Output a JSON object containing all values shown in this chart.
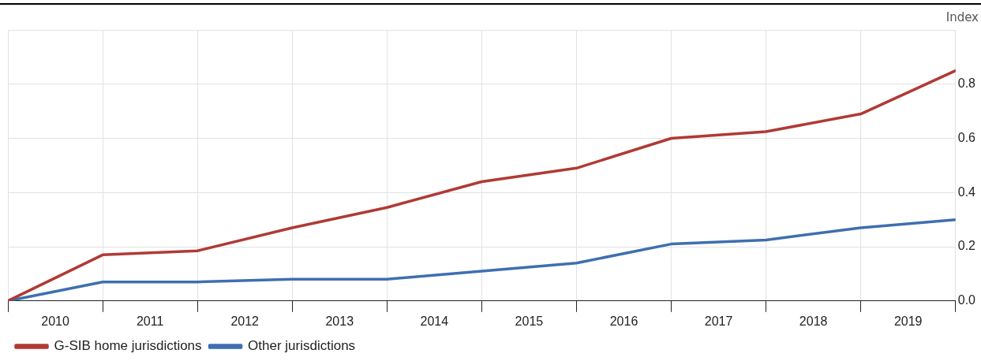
{
  "chart_data": {
    "type": "line",
    "ylabel": "Index",
    "x": [
      2010,
      2011,
      2012,
      2013,
      2014,
      2015,
      2016,
      2017,
      2018,
      2019,
      2020
    ],
    "xlim": [
      2010,
      2020
    ],
    "xticks": [
      {
        "value": 2010,
        "label": null
      },
      {
        "value": 2011,
        "label": null
      },
      {
        "value": 2012,
        "label": null
      },
      {
        "value": 2013,
        "label": null
      },
      {
        "value": 2014,
        "label": null
      },
      {
        "value": 2015,
        "label": null
      },
      {
        "value": 2016,
        "label": null
      },
      {
        "value": 2017,
        "label": null
      },
      {
        "value": 2018,
        "label": null
      },
      {
        "value": 2019,
        "label": null
      },
      {
        "value": 2020,
        "label": null
      },
      {
        "value": 2010.5,
        "label": "2010"
      },
      {
        "value": 2011.5,
        "label": "2011"
      },
      {
        "value": 2012.5,
        "label": "2012"
      },
      {
        "value": 2013.5,
        "label": "2013"
      },
      {
        "value": 2014.5,
        "label": "2014"
      },
      {
        "value": 2015.5,
        "label": "2015"
      },
      {
        "value": 2016.5,
        "label": "2016"
      },
      {
        "value": 2017.5,
        "label": "2017"
      },
      {
        "value": 2018.5,
        "label": "2018"
      },
      {
        "value": 2019.5,
        "label": "2019"
      }
    ],
    "ylim": [
      0,
      1
    ],
    "yticks": [
      {
        "value": 0,
        "label": "0.0"
      },
      {
        "value": 0.2,
        "label": "0.2"
      },
      {
        "value": 0.4,
        "label": "0.4"
      },
      {
        "value": 0.6,
        "label": "0.6"
      },
      {
        "value": 0.8,
        "label": "0.8"
      },
      {
        "value": 1,
        "label": null
      }
    ],
    "grid": true,
    "legend": "bottom left",
    "marker": "none",
    "line_style": "solid",
    "series": [
      {
        "name": "G-SIB home jurisdictions",
        "color": "#b03a35",
        "values": [
          0,
          0.17,
          0.185,
          0.27,
          0.345,
          0.44,
          0.49,
          0.6,
          0.625,
          0.69,
          0.85
        ]
      },
      {
        "name": "Other jurisdictions",
        "color": "#3e6fb0",
        "values": [
          0,
          0.07,
          0.07,
          0.08,
          0.08,
          0.11,
          0.14,
          0.21,
          0.225,
          0.27,
          0.3
        ]
      }
    ]
  }
}
